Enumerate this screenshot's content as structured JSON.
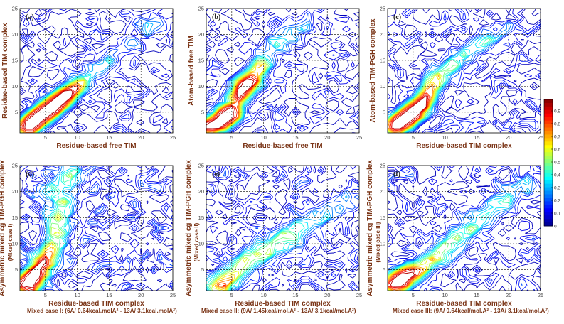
{
  "chart_data": [
    {
      "type": "contour",
      "panel_label": "(a)",
      "xlabel": "Residue-based free TIM",
      "ylabel": "Residue-based TIM complex",
      "ylabel2": "",
      "xlim": [
        1,
        25
      ],
      "ylim": [
        1,
        25
      ],
      "xticks": [
        5,
        10,
        15,
        20,
        25
      ],
      "yticks": [
        5,
        10,
        15,
        20,
        25
      ],
      "grid": true,
      "peaks": [
        [
          2,
          2,
          1.0
        ],
        [
          3,
          3,
          1.0
        ],
        [
          4,
          4,
          0.95
        ],
        [
          5,
          5,
          0.95
        ],
        [
          6,
          6,
          0.9
        ],
        [
          7,
          7,
          0.9
        ],
        [
          8,
          8,
          0.85
        ],
        [
          9,
          9,
          0.5
        ],
        [
          10,
          10,
          0.45
        ],
        [
          11,
          11,
          0.35
        ],
        [
          13,
          13,
          0.3
        ],
        [
          15,
          15,
          0.3
        ],
        [
          18,
          18,
          0.25
        ],
        [
          21,
          21,
          0.25
        ],
        [
          23,
          22,
          0.2
        ]
      ],
      "spread": 1.6,
      "noise": 0.18
    },
    {
      "type": "contour",
      "panel_label": "(b)",
      "xlabel": "Residue-based free TIM",
      "ylabel": "Atom-based free TIM",
      "ylabel2": "",
      "xlim": [
        1,
        25
      ],
      "ylim": [
        1,
        25
      ],
      "xticks": [
        5,
        10,
        15,
        20,
        25
      ],
      "yticks": [
        5,
        10,
        15,
        20,
        25
      ],
      "grid": true,
      "peaks": [
        [
          1,
          2,
          0.9
        ],
        [
          3,
          3,
          0.9
        ],
        [
          4,
          4,
          0.85
        ],
        [
          5,
          5,
          0.9
        ],
        [
          6,
          8,
          0.8
        ],
        [
          7,
          10,
          0.9
        ],
        [
          8,
          11,
          0.7
        ],
        [
          9,
          13,
          0.5
        ],
        [
          10,
          15,
          0.4
        ],
        [
          12,
          18,
          0.35
        ],
        [
          14,
          20,
          0.3
        ],
        [
          16,
          22,
          0.2
        ]
      ],
      "spread": 1.7,
      "noise": 0.2
    },
    {
      "type": "contour",
      "panel_label": "(c)",
      "xlabel": "Residue-based TIM complex",
      "ylabel": "Atom-based TIM-PGH complex",
      "ylabel2": "",
      "xlim": [
        1,
        25
      ],
      "ylim": [
        1,
        25
      ],
      "xticks": [
        5,
        10,
        15,
        20,
        25
      ],
      "yticks": [
        5,
        10,
        15,
        20,
        25
      ],
      "grid": true,
      "peaks": [
        [
          2,
          2,
          0.9
        ],
        [
          3,
          3,
          1.0
        ],
        [
          4,
          4,
          0.95
        ],
        [
          5,
          5,
          0.9
        ],
        [
          6,
          6,
          0.85
        ],
        [
          7,
          8,
          0.8
        ],
        [
          8,
          10,
          0.6
        ],
        [
          9,
          12,
          0.5
        ],
        [
          11,
          14,
          0.45
        ],
        [
          13,
          16,
          0.35
        ],
        [
          15,
          18,
          0.3
        ],
        [
          17,
          19,
          0.3
        ],
        [
          20,
          21,
          0.2
        ]
      ],
      "spread": 1.6,
      "noise": 0.2
    },
    {
      "type": "contour",
      "panel_label": "(d)",
      "xlabel": "Residue-based TIM complex",
      "ylabel": "Asymmetric mixed cg TIM-PGH complex",
      "ylabel2": "(Mixed case I)",
      "caption": "Mixed case I: (6A/ 0.64kcal.molA² - 13A/ 3.1kcal.molA²)",
      "xlim": [
        1,
        25
      ],
      "ylim": [
        1,
        25
      ],
      "xticks": [
        5,
        10,
        15,
        20,
        25
      ],
      "yticks": [
        5,
        10,
        15,
        20,
        25
      ],
      "grid": true,
      "peaks": [
        [
          2,
          2,
          0.9
        ],
        [
          3,
          3,
          0.8
        ],
        [
          4,
          5,
          0.7
        ],
        [
          5,
          7,
          0.6
        ],
        [
          6,
          9,
          0.55
        ],
        [
          7,
          12,
          0.5
        ],
        [
          7,
          15,
          0.5
        ],
        [
          8,
          18,
          0.45
        ],
        [
          8,
          22,
          0.4
        ],
        [
          9,
          24,
          0.3
        ],
        [
          5,
          20,
          0.3
        ]
      ],
      "spread": 1.8,
      "noise": 0.25
    },
    {
      "type": "contour",
      "panel_label": "(e)",
      "xlabel": "Residue-based TIM complex",
      "ylabel": "Asymmetric mixed cg TIM-PGH complex",
      "ylabel2": "(Mixed case II)",
      "caption": "Mixed case II: (9A/ 1.45kcal/mol.A² - 13A/ 3.1kcal/mol.A²)",
      "xlim": [
        1,
        25
      ],
      "ylim": [
        1,
        25
      ],
      "xticks": [
        5,
        10,
        15,
        20,
        25
      ],
      "yticks": [
        5,
        10,
        15,
        20,
        25
      ],
      "grid": true,
      "peaks": [
        [
          3,
          2,
          0.7
        ],
        [
          5,
          4,
          0.5
        ],
        [
          7,
          6,
          0.45
        ],
        [
          9,
          8,
          0.4
        ],
        [
          11,
          9,
          0.35
        ],
        [
          13,
          11,
          0.35
        ],
        [
          15,
          12,
          0.3
        ],
        [
          17,
          14,
          0.3
        ],
        [
          20,
          16,
          0.25
        ],
        [
          23,
          18,
          0.2
        ]
      ],
      "spread": 2.0,
      "noise": 0.22
    },
    {
      "type": "contour",
      "panel_label": "(f)",
      "xlabel": "Residue-based TIM complex",
      "ylabel": "Asymmetric mixed cg TIM-PGH complex",
      "ylabel2": "(Mixed case III)",
      "caption": "Mixed case III: (9A/ 0.64kcal/mol.A² - 13A/ 3.1kcal/mol.A²)",
      "xlim": [
        1,
        25
      ],
      "ylim": [
        1,
        25
      ],
      "xticks": [
        5,
        10,
        15,
        20,
        25
      ],
      "yticks": [
        5,
        10,
        15,
        20,
        25
      ],
      "grid": true,
      "peaks": [
        [
          2,
          2,
          0.8
        ],
        [
          3,
          3,
          0.8
        ],
        [
          4,
          4,
          0.7
        ],
        [
          6,
          5,
          0.6
        ],
        [
          8,
          7,
          0.5
        ],
        [
          10,
          9,
          0.45
        ],
        [
          12,
          11,
          0.4
        ],
        [
          14,
          13,
          0.35
        ],
        [
          16,
          15,
          0.35
        ],
        [
          18,
          17,
          0.3
        ],
        [
          20,
          19,
          0.3
        ],
        [
          23,
          21,
          0.25
        ]
      ],
      "spread": 1.8,
      "noise": 0.22
    }
  ],
  "colorbar": {
    "tick_labels": [
      "0.9",
      "0.8",
      "0.7",
      "0.6",
      "0.5",
      "0.4",
      "0.3",
      "0.2",
      "0.1",
      "0"
    ],
    "levels": [
      0.05,
      0.1,
      0.15,
      0.2,
      0.25,
      0.3,
      0.35,
      0.4,
      0.45,
      0.5,
      0.55,
      0.6,
      0.65,
      0.7,
      0.75,
      0.8,
      0.85,
      0.9,
      0.95
    ],
    "colormap": [
      "#00008f",
      "#0000ff",
      "#007fff",
      "#00ffff",
      "#7fff7f",
      "#ffff00",
      "#ff7f00",
      "#ff0000",
      "#7f0000"
    ]
  },
  "colors": {
    "axis_text": "#7a3416",
    "caption_text": "#7a3416",
    "grid": "#000000"
  }
}
